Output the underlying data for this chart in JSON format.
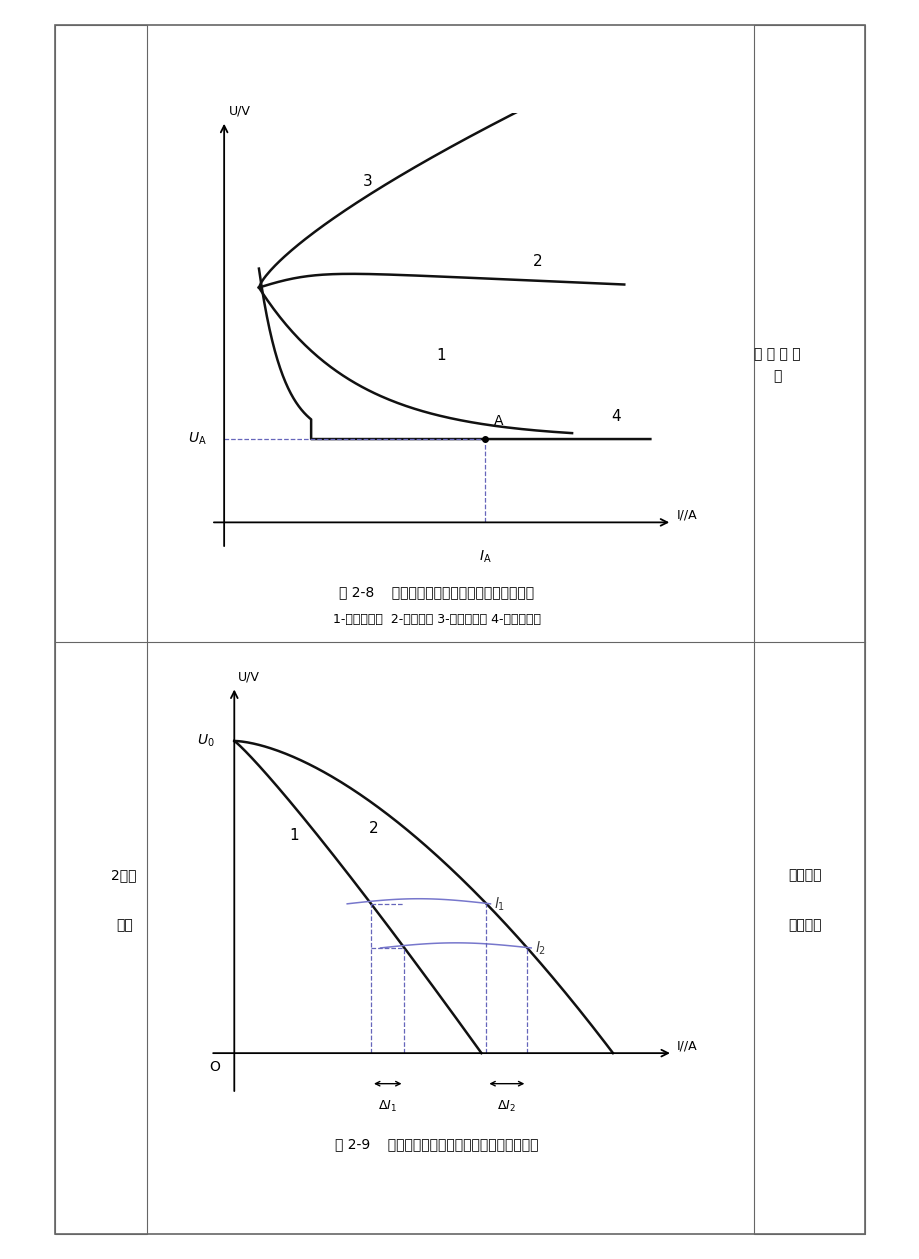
{
  "page_bg": "#ffffff",
  "border_color": "#444444",
  "line_color": "#111111",
  "dashed_color": "#6666aa",
  "fig1": {
    "title": "图 2-8    弧焊电源的外特性与电弧静特性的关系",
    "subtitle": "1-下降外特性  2-平外特性 3-上升外特性 4-电弧静特性",
    "ylabel": "U/V",
    "xlabel": "I//A",
    "right_label": "结 合 图 分\n析"
  },
  "fig2": {
    "title": "图 2-9    不同下降度外特性曲线对焊接电流的影响",
    "ylabel": "U/V",
    "xlabel": "I//A",
    "left_label": "2、弧\n\n特性",
    "right_label": "焊电源外\n\n曲线选择"
  }
}
